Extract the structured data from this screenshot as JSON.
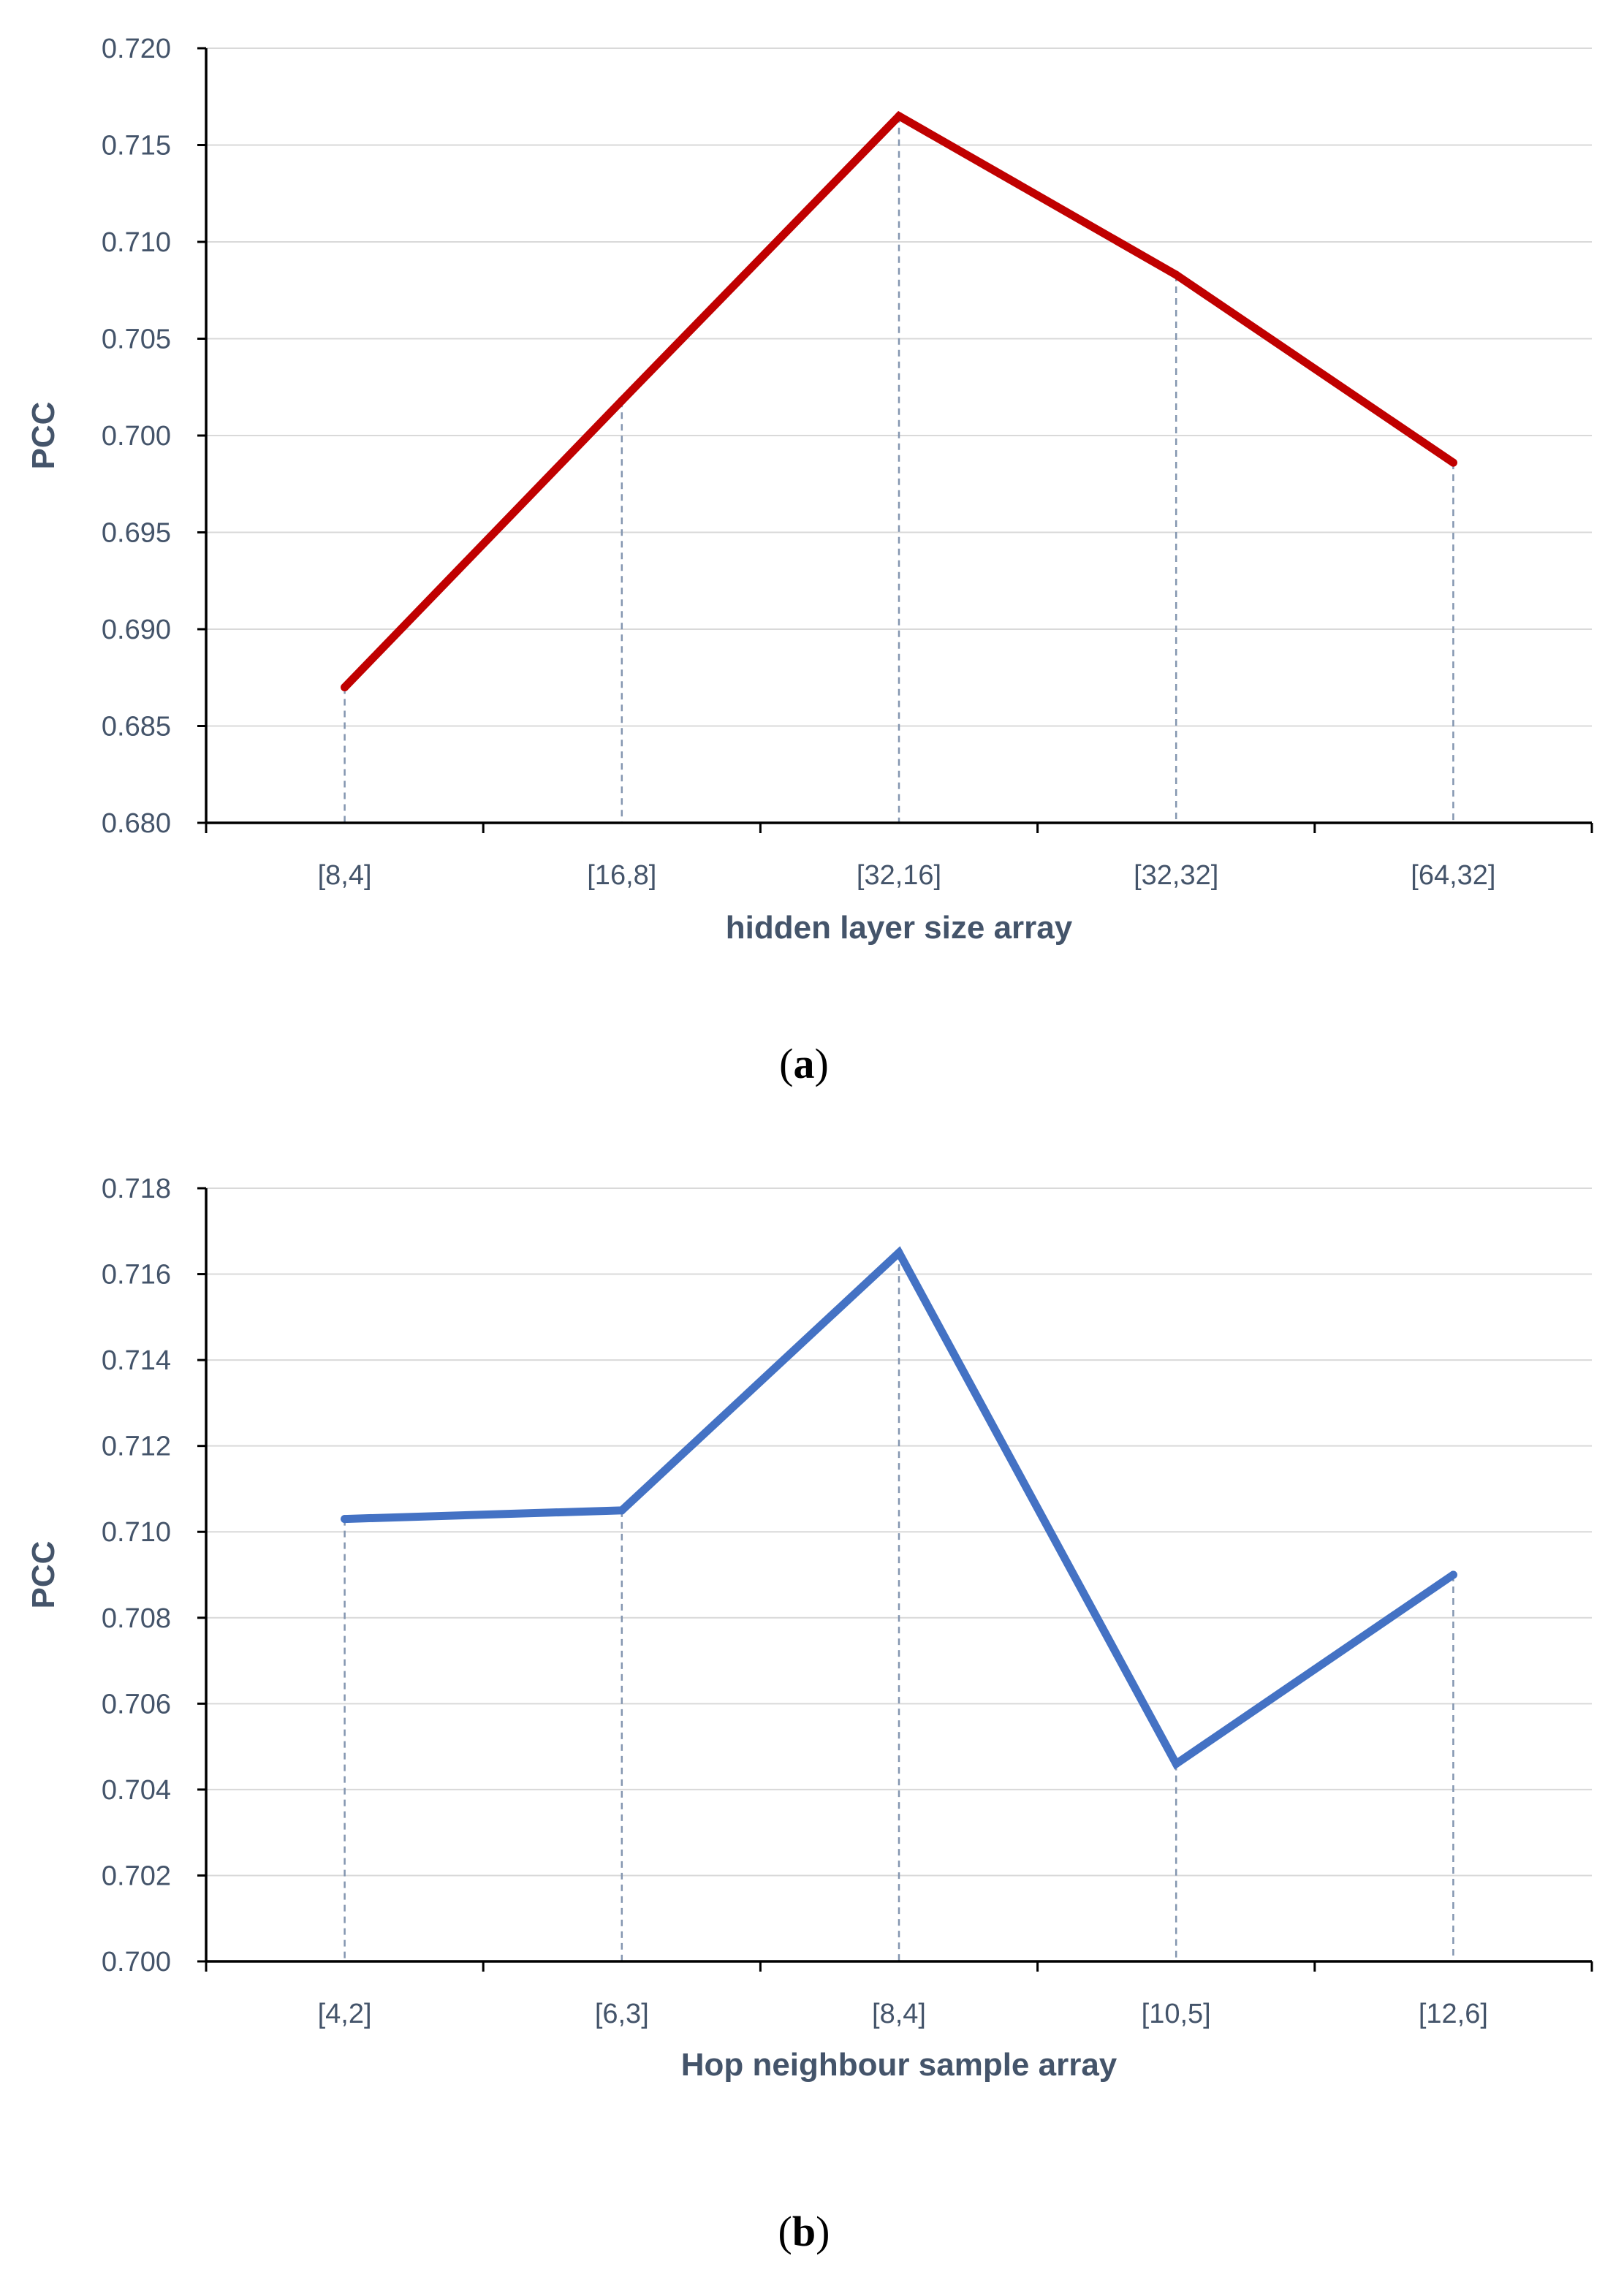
{
  "chart_data": [
    {
      "type": "line",
      "panel_label": "a",
      "categories": [
        "[8,4]",
        "[16,8]",
        "[32,16]",
        "[32,32]",
        "[64,32]"
      ],
      "series": [
        {
          "values": [
            0.687,
            0.7018,
            0.7165,
            0.7083,
            0.6986
          ],
          "color": "#c00000"
        }
      ],
      "xlabel": "hidden layer size array",
      "ylabel": "PCC",
      "ylim": [
        0.68,
        0.72
      ],
      "yticks": [
        "0.680",
        "0.685",
        "0.690",
        "0.695",
        "0.700",
        "0.705",
        "0.710",
        "0.715",
        "0.720"
      ],
      "grid": true,
      "drop_lines": true
    },
    {
      "type": "line",
      "panel_label": "b",
      "categories": [
        "[4,2]",
        "[6,3]",
        "[8,4]",
        "[10,5]",
        "[12,6]"
      ],
      "series": [
        {
          "values": [
            0.7103,
            0.7105,
            0.7165,
            0.7046,
            0.709
          ],
          "color": "#4472c4"
        }
      ],
      "xlabel": "Hop neighbour sample array",
      "ylabel": "PCC",
      "ylim": [
        0.7,
        0.718
      ],
      "yticks": [
        "0.700",
        "0.702",
        "0.704",
        "0.706",
        "0.708",
        "0.710",
        "0.712",
        "0.714",
        "0.716",
        "0.718"
      ],
      "grid": true,
      "drop_lines": true
    }
  ]
}
